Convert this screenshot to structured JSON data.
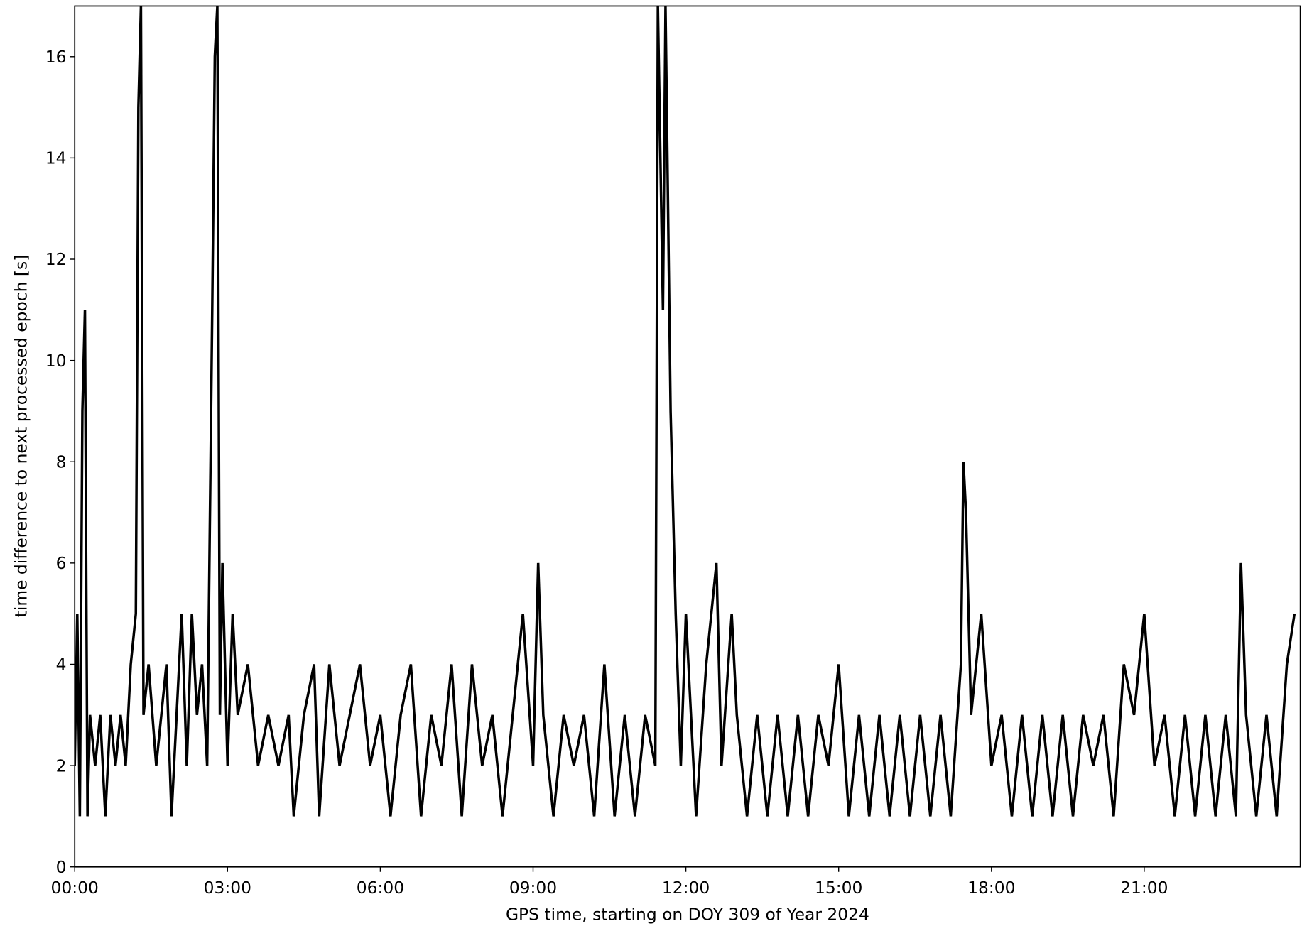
{
  "chart_data": {
    "type": "line",
    "xlabel": "GPS time, starting on DOY 309 of Year 2024",
    "ylabel": "time difference to next processed epoch [s]",
    "x": [
      0.0,
      0.05,
      0.1,
      0.15,
      0.2,
      0.25,
      0.3,
      0.4,
      0.5,
      0.6,
      0.7,
      0.8,
      0.9,
      1.0,
      1.1,
      1.2,
      1.25,
      1.3,
      1.35,
      1.45,
      1.6,
      1.8,
      1.9,
      2.0,
      2.1,
      2.2,
      2.3,
      2.4,
      2.5,
      2.6,
      2.7,
      2.75,
      2.8,
      2.85,
      2.9,
      3.0,
      3.1,
      3.2,
      3.4,
      3.6,
      3.8,
      4.0,
      4.2,
      4.3,
      4.5,
      4.7,
      4.8,
      5.0,
      5.2,
      5.4,
      5.6,
      5.8,
      6.0,
      6.2,
      6.4,
      6.6,
      6.8,
      7.0,
      7.2,
      7.4,
      7.6,
      7.8,
      8.0,
      8.2,
      8.4,
      8.6,
      8.8,
      9.0,
      9.1,
      9.2,
      9.4,
      9.6,
      9.8,
      10.0,
      10.2,
      10.4,
      10.6,
      10.8,
      11.0,
      11.2,
      11.4,
      11.45,
      11.55,
      11.6,
      11.7,
      11.8,
      11.9,
      12.0,
      12.2,
      12.4,
      12.6,
      12.7,
      12.9,
      13.0,
      13.2,
      13.4,
      13.6,
      13.8,
      14.0,
      14.2,
      14.4,
      14.6,
      14.8,
      15.0,
      15.2,
      15.4,
      15.6,
      15.8,
      16.0,
      16.2,
      16.4,
      16.6,
      16.8,
      17.0,
      17.2,
      17.4,
      17.45,
      17.5,
      17.6,
      17.8,
      18.0,
      18.2,
      18.4,
      18.6,
      18.8,
      19.0,
      19.2,
      19.4,
      19.6,
      19.8,
      20.0,
      20.2,
      20.4,
      20.6,
      20.8,
      21.0,
      21.2,
      21.4,
      21.6,
      21.8,
      22.0,
      22.2,
      22.4,
      22.6,
      22.8,
      22.9,
      23.0,
      23.2,
      23.4,
      23.6,
      23.8,
      23.95
    ],
    "values": [
      2,
      5,
      1,
      9,
      11,
      1,
      3,
      2,
      3,
      1,
      3,
      2,
      3,
      2,
      4,
      5,
      15,
      17,
      3,
      4,
      2,
      4,
      1,
      3,
      5,
      2,
      5,
      3,
      4,
      2,
      11,
      16,
      17,
      3,
      6,
      2,
      5,
      3,
      4,
      2,
      3,
      2,
      3,
      1,
      3,
      4,
      1,
      4,
      2,
      3,
      4,
      2,
      3,
      1,
      3,
      4,
      1,
      3,
      2,
      4,
      1,
      4,
      2,
      3,
      1,
      3,
      5,
      2,
      6,
      3,
      1,
      3,
      2,
      3,
      1,
      4,
      1,
      3,
      1,
      3,
      2,
      17,
      11,
      17,
      9,
      5,
      2,
      5,
      1,
      4,
      6,
      2,
      5,
      3,
      1,
      3,
      1,
      3,
      1,
      3,
      1,
      3,
      2,
      4,
      1,
      3,
      1,
      3,
      1,
      3,
      1,
      3,
      1,
      3,
      1,
      4,
      8,
      7,
      3,
      5,
      2,
      3,
      1,
      3,
      1,
      3,
      1,
      3,
      1,
      3,
      2,
      3,
      1,
      4,
      3,
      5,
      2,
      3,
      1,
      3,
      1,
      3,
      1,
      3,
      1,
      6,
      3,
      1,
      3,
      1,
      4,
      5
    ],
    "color": "#000000",
    "xlim": [
      0,
      24
    ],
    "ylim": [
      0,
      17
    ],
    "xticks": [
      {
        "value": 0,
        "label": "00:00"
      },
      {
        "value": 3,
        "label": "03:00"
      },
      {
        "value": 6,
        "label": "06:00"
      },
      {
        "value": 9,
        "label": "09:00"
      },
      {
        "value": 12,
        "label": "12:00"
      },
      {
        "value": 15,
        "label": "15:00"
      },
      {
        "value": 18,
        "label": "18:00"
      },
      {
        "value": 21,
        "label": "21:00"
      }
    ],
    "yticks": [
      0,
      2,
      4,
      6,
      8,
      10,
      12,
      14,
      16
    ],
    "grid": false
  }
}
